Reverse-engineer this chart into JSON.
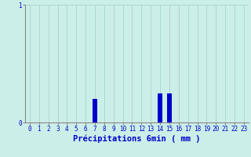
{
  "title": "",
  "xlabel": "Précipitations 6min ( mm )",
  "ylabel": "",
  "background_color": "#cceee8",
  "bar_color": "#0000cc",
  "hours": [
    0,
    1,
    2,
    3,
    4,
    5,
    6,
    7,
    8,
    9,
    10,
    11,
    12,
    13,
    14,
    15,
    16,
    17,
    18,
    19,
    20,
    21,
    22,
    23
  ],
  "values": [
    0,
    0,
    0,
    0,
    0,
    0,
    0,
    0.2,
    0,
    0,
    0,
    0,
    0,
    0,
    0.25,
    0.25,
    0,
    0,
    0,
    0,
    0,
    0,
    0,
    0
  ],
  "ylim": [
    0,
    1.0
  ],
  "yticks": [
    0,
    1
  ],
  "ytick_labels": [
    "0",
    "1"
  ],
  "xlim": [
    -0.5,
    23.5
  ],
  "grid_color": "#aad8d2",
  "axis_color": "#888888",
  "text_color": "#0000cc",
  "tick_fontsize": 5.5,
  "label_fontsize": 7.5
}
